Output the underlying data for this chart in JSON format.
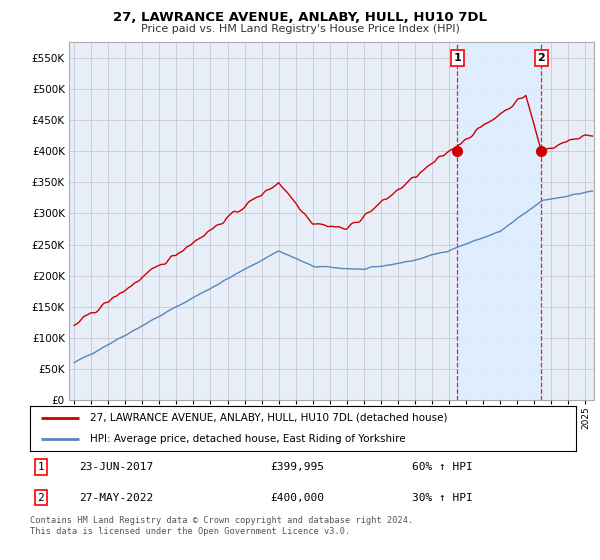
{
  "title": "27, LAWRANCE AVENUE, ANLABY, HULL, HU10 7DL",
  "subtitle": "Price paid vs. HM Land Registry's House Price Index (HPI)",
  "legend_line1": "27, LAWRANCE AVENUE, ANLABY, HULL, HU10 7DL (detached house)",
  "legend_line2": "HPI: Average price, detached house, East Riding of Yorkshire",
  "footer": "Contains HM Land Registry data © Crown copyright and database right 2024.\nThis data is licensed under the Open Government Licence v3.0.",
  "transaction1_date": "23-JUN-2017",
  "transaction1_price": "£399,995",
  "transaction1_hpi": "60% ↑ HPI",
  "transaction2_date": "27-MAY-2022",
  "transaction2_price": "£400,000",
  "transaction2_hpi": "30% ↑ HPI",
  "red_color": "#cc0000",
  "blue_color": "#5588bb",
  "shade_color": "#ddeeff",
  "background_color": "#e8eef8",
  "grid_color": "#c8c8d8",
  "ylim": [
    0,
    575000
  ],
  "yticks": [
    0,
    50000,
    100000,
    150000,
    200000,
    250000,
    300000,
    350000,
    400000,
    450000,
    500000,
    550000
  ],
  "xlim_start": 1994.7,
  "xlim_end": 2025.5
}
